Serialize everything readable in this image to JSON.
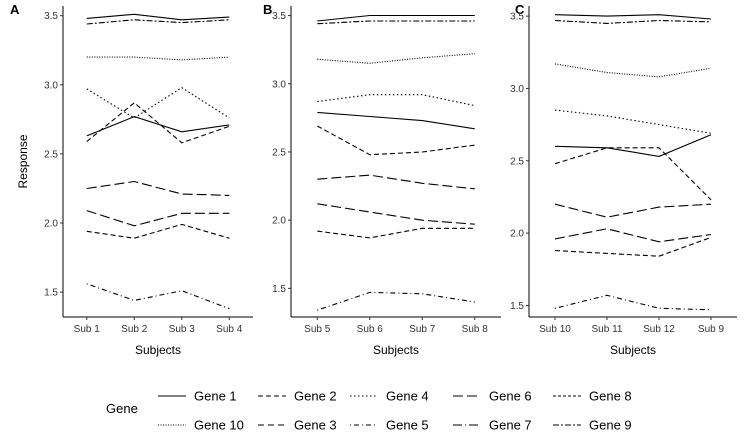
{
  "chart_data": {
    "type": "line",
    "ylabel": "Response",
    "grid": false,
    "legend_position": "bottom",
    "legend_title": "Gene",
    "legend_entries": [
      {
        "name": "Gene 1",
        "dash": "solid"
      },
      {
        "name": "Gene 2",
        "dash": "dashed"
      },
      {
        "name": "Gene 4",
        "dash": "dotted"
      },
      {
        "name": "Gene 6",
        "dash": "longdash"
      },
      {
        "name": "Gene 8",
        "dash": "shortdash"
      },
      {
        "name": "Gene 10",
        "dash": "densedot"
      },
      {
        "name": "Gene 3",
        "dash": "dashed2"
      },
      {
        "name": "Gene 5",
        "dash": "dotdash"
      },
      {
        "name": "Gene 7",
        "dash": "longdashdot"
      },
      {
        "name": "Gene 9",
        "dash": "twodash"
      }
    ],
    "panels": [
      {
        "label": "A",
        "xlabel": "Subjects",
        "categories": [
          "Sub 1",
          "Sub 2",
          "Sub 3",
          "Sub 4"
        ],
        "ylim": [
          1.32,
          3.57
        ],
        "yticks": [
          1.5,
          2.0,
          2.5,
          3.0,
          3.5
        ],
        "ytick_labels": [
          "1.5",
          "2.0",
          "2.5",
          "3.0",
          "3.5"
        ],
        "series": [
          {
            "name": "Gene 1",
            "dash": "solid",
            "values": [
              3.48,
              3.51,
              3.47,
              3.49
            ]
          },
          {
            "name": "Gene 9",
            "dash": "twodash",
            "values": [
              3.44,
              3.47,
              3.45,
              3.47
            ]
          },
          {
            "name": "Gene 10",
            "dash": "densedot",
            "values": [
              3.2,
              3.2,
              3.18,
              3.2
            ]
          },
          {
            "name": "Gene 4",
            "dash": "dotted",
            "values": [
              2.97,
              2.76,
              2.98,
              2.76
            ]
          },
          {
            "name": "Gene 2",
            "dash": "dashed",
            "values": [
              2.59,
              2.87,
              2.58,
              2.7
            ]
          },
          {
            "name": "Gene 5",
            "dash": "solid",
            "values": [
              2.63,
              2.77,
              2.66,
              2.71
            ]
          },
          {
            "name": "Gene 3",
            "dash": "longdash",
            "values": [
              2.25,
              2.3,
              2.21,
              2.2
            ]
          },
          {
            "name": "Gene 6",
            "dash": "longdash",
            "values": [
              2.09,
              1.98,
              2.07,
              2.07
            ]
          },
          {
            "name": "Gene 7",
            "dash": "dashed",
            "values": [
              1.94,
              1.89,
              1.99,
              1.89
            ]
          },
          {
            "name": "Gene 8",
            "dash": "dotdash",
            "values": [
              1.56,
              1.44,
              1.51,
              1.38
            ]
          }
        ]
      },
      {
        "label": "B",
        "xlabel": "Subjects",
        "categories": [
          "Sub 5",
          "Sub 6",
          "Sub 7",
          "Sub 8"
        ],
        "ylim": [
          1.29,
          3.57
        ],
        "yticks": [
          1.5,
          2.0,
          2.5,
          3.0,
          3.5
        ],
        "ytick_labels": [
          "1.5",
          "2.0",
          "2.5",
          "3.0",
          "3.5"
        ],
        "series": [
          {
            "name": "Gene 1",
            "dash": "solid",
            "values": [
              3.46,
              3.5,
              3.5,
              3.5
            ]
          },
          {
            "name": "Gene 9",
            "dash": "twodash",
            "values": [
              3.44,
              3.46,
              3.46,
              3.46
            ]
          },
          {
            "name": "Gene 10",
            "dash": "densedot",
            "values": [
              3.18,
              3.15,
              3.19,
              3.22
            ]
          },
          {
            "name": "Gene 4",
            "dash": "dotted",
            "values": [
              2.87,
              2.92,
              2.92,
              2.84
            ]
          },
          {
            "name": "Gene 5",
            "dash": "solid",
            "values": [
              2.79,
              2.76,
              2.73,
              2.67
            ]
          },
          {
            "name": "Gene 2",
            "dash": "dashed",
            "values": [
              2.69,
              2.48,
              2.5,
              2.55
            ]
          },
          {
            "name": "Gene 3",
            "dash": "longdash",
            "values": [
              2.3,
              2.33,
              2.27,
              2.23
            ]
          },
          {
            "name": "Gene 6",
            "dash": "longdash",
            "values": [
              2.12,
              2.06,
              2.0,
              1.97
            ]
          },
          {
            "name": "Gene 7",
            "dash": "dashed",
            "values": [
              1.92,
              1.87,
              1.94,
              1.94
            ]
          },
          {
            "name": "Gene 8",
            "dash": "dotdash",
            "values": [
              1.34,
              1.47,
              1.46,
              1.4
            ]
          }
        ]
      },
      {
        "label": "C",
        "xlabel": "Subjects",
        "categories": [
          "Sub 10",
          "Sub 11",
          "Sub 12",
          "Sub 9"
        ],
        "ylim": [
          1.42,
          3.57
        ],
        "yticks": [
          1.5,
          2.0,
          2.5,
          3.0,
          3.5
        ],
        "ytick_labels": [
          "1.5",
          "2.0",
          "2.5",
          "3.0",
          "3.5"
        ],
        "series": [
          {
            "name": "Gene 1",
            "dash": "solid",
            "values": [
              3.51,
              3.5,
              3.51,
              3.48
            ]
          },
          {
            "name": "Gene 9",
            "dash": "twodash",
            "values": [
              3.47,
              3.45,
              3.47,
              3.46
            ]
          },
          {
            "name": "Gene 10",
            "dash": "densedot",
            "values": [
              3.17,
              3.11,
              3.08,
              3.14
            ]
          },
          {
            "name": "Gene 4",
            "dash": "dotted",
            "values": [
              2.85,
              2.81,
              2.75,
              2.69
            ]
          },
          {
            "name": "Gene 5",
            "dash": "solid",
            "values": [
              2.6,
              2.59,
              2.53,
              2.68
            ]
          },
          {
            "name": "Gene 2",
            "dash": "dashed",
            "values": [
              2.48,
              2.59,
              2.59,
              2.23
            ]
          },
          {
            "name": "Gene 3",
            "dash": "longdash",
            "values": [
              2.2,
              2.11,
              2.18,
              2.2
            ]
          },
          {
            "name": "Gene 6",
            "dash": "longdash",
            "values": [
              1.96,
              2.03,
              1.94,
              1.99
            ]
          },
          {
            "name": "Gene 7",
            "dash": "dashed",
            "values": [
              1.88,
              1.86,
              1.84,
              1.97
            ]
          },
          {
            "name": "Gene 8",
            "dash": "dotdash",
            "values": [
              1.48,
              1.57,
              1.48,
              1.47
            ]
          }
        ]
      }
    ]
  }
}
